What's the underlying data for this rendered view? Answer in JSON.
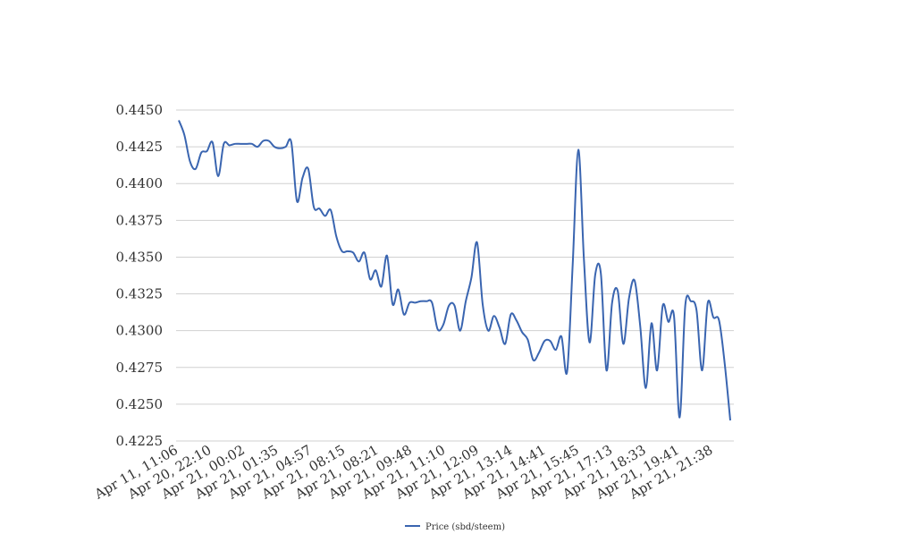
{
  "chart_data": {
    "type": "line",
    "title": "",
    "xlabel": "",
    "ylabel": "",
    "ylim": [
      0.4225,
      0.445
    ],
    "yticks": [
      "0.4450",
      "0.4425",
      "0.4400",
      "0.4375",
      "0.4350",
      "0.4325",
      "0.4300",
      "0.4275",
      "0.4250",
      "0.4225"
    ],
    "x_tick_labels": [
      "Apr 11, 11:06",
      "Apr 20, 22:10",
      "Apr 21, 00:02",
      "Apr 21, 01:35",
      "Apr 21, 04:57",
      "Apr 21, 08:15",
      "Apr 21, 08:21",
      "Apr 21, 09:48",
      "Apr 21, 11:10",
      "Apr 21, 12:09",
      "Apr 21, 13:14",
      "Apr 21, 14:41",
      "Apr 21, 15:45",
      "Apr 21, 17:13",
      "Apr 21, 18:33",
      "Apr 21, 19:41",
      "Apr 21, 21:38"
    ],
    "grid": true,
    "legend_position": "bottom",
    "line_color": "#3a65b0",
    "series": [
      {
        "name": "Price (sbd/steem)",
        "values": [
          0.4443,
          0.4433,
          0.4415,
          0.441,
          0.4421,
          0.4422,
          0.4428,
          0.4405,
          0.4427,
          0.4426,
          0.4427,
          0.4427,
          0.4427,
          0.4427,
          0.4425,
          0.4429,
          0.4429,
          0.4425,
          0.4424,
          0.4425,
          0.4428,
          0.4388,
          0.4404,
          0.441,
          0.4384,
          0.4383,
          0.4378,
          0.4382,
          0.4364,
          0.4354,
          0.4354,
          0.4353,
          0.4347,
          0.4353,
          0.4335,
          0.4341,
          0.433,
          0.4351,
          0.4318,
          0.4328,
          0.4311,
          0.4319,
          0.4319,
          0.432,
          0.432,
          0.4319,
          0.4301,
          0.4304,
          0.4317,
          0.4317,
          0.43,
          0.432,
          0.4336,
          0.436,
          0.4318,
          0.43,
          0.431,
          0.4302,
          0.4291,
          0.4311,
          0.4307,
          0.4299,
          0.4294,
          0.428,
          0.4285,
          0.4293,
          0.4293,
          0.4287,
          0.4296,
          0.4272,
          0.4345,
          0.4423,
          0.4348,
          0.4292,
          0.4338,
          0.4339,
          0.4273,
          0.4319,
          0.4327,
          0.4291,
          0.4322,
          0.4334,
          0.4303,
          0.4261,
          0.4305,
          0.4273,
          0.4317,
          0.4306,
          0.431,
          0.4241,
          0.4317,
          0.432,
          0.4314,
          0.4273,
          0.4319,
          0.4309,
          0.4307,
          0.4278,
          0.4239
        ]
      }
    ]
  }
}
